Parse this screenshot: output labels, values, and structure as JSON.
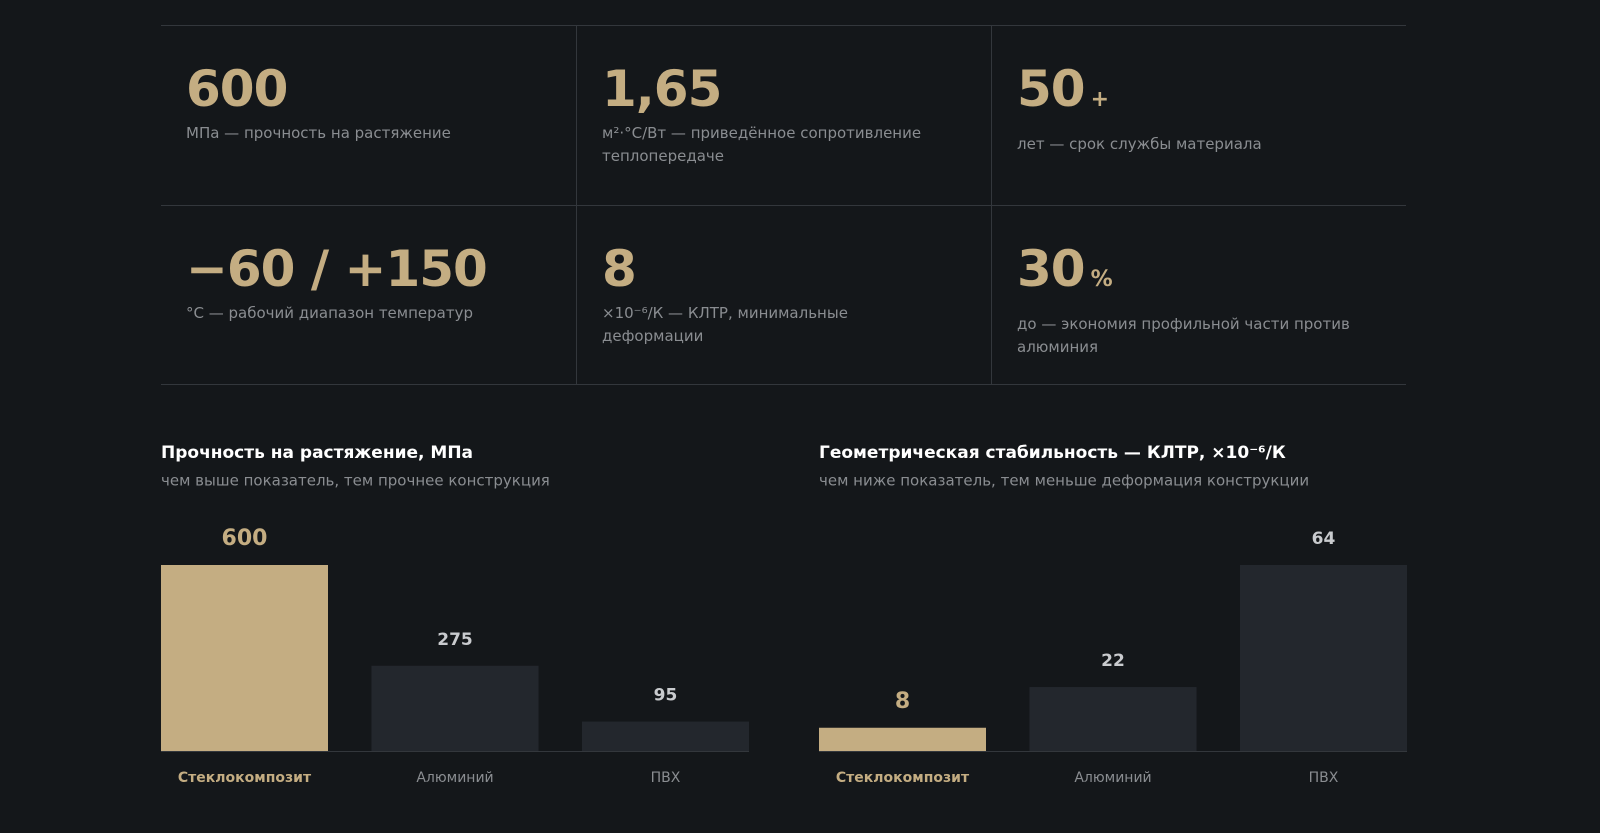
{
  "stats": [
    {
      "value": "600",
      "caption": "МПа — прочность на растяжение"
    },
    {
      "value": "1,65",
      "caption": "м²·°С/Вт — приведённое сопротивление теплопередаче"
    },
    {
      "value": "50",
      "suffix": "+",
      "caption": "лет — срок службы материала"
    },
    {
      "value": "−60 / +150",
      "caption": "°С — рабочий диапазон температур"
    },
    {
      "value": "8",
      "caption": "×10⁻⁶/К — КЛТР, минимальные деформации"
    },
    {
      "value": "30",
      "suffix": "%",
      "caption": "до — экономия профильной части против алюминия"
    }
  ],
  "chart_data": [
    {
      "type": "bar",
      "title": "Прочность на растяжение, МПа",
      "subtitle": "чем выше показатель, тем прочнее конструкция",
      "categories": [
        "Стеклокомпозит",
        "Алюминий",
        "ПВХ"
      ],
      "values": [
        600,
        275,
        95
      ],
      "colors": [
        "#c4ad82",
        "#23272d",
        "#23272d"
      ],
      "label_colors": [
        "#c4ad82",
        "#8a8d91",
        "#8a8d91"
      ]
    },
    {
      "type": "bar",
      "title": "Геометрическая стабильность — КЛТР, ×10⁻⁶/К",
      "subtitle": "чем ниже показатель, тем меньше деформация конструкции",
      "categories": [
        "Стеклокомпозит",
        "Алюминий",
        "ПВХ"
      ],
      "values": [
        8,
        22,
        64
      ],
      "colors": [
        "#c4ad82",
        "#23272d",
        "#23272d"
      ],
      "label_colors": [
        "#c4ad82",
        "#8a8d91",
        "#8a8d91"
      ]
    }
  ]
}
